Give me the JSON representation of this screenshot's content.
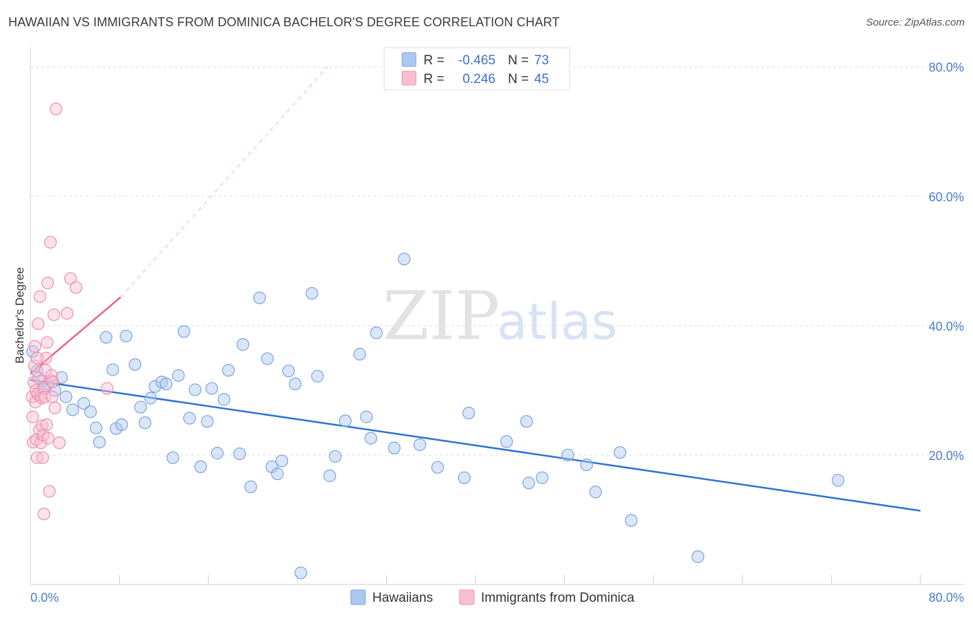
{
  "header": {
    "title": "HAWAIIAN VS IMMIGRANTS FROM DOMINICA BACHELOR'S DEGREE CORRELATION CHART",
    "source": "Source: ZipAtlas.com"
  },
  "watermark": {
    "zip": "ZIP",
    "atlas": "atlas"
  },
  "colors": {
    "blue_fill": "#aac8f0",
    "blue_stroke": "#7aa3dd",
    "blue_line": "#2f72d2",
    "pink_fill": "#f8bfd0",
    "pink_stroke": "#ec8fac",
    "pink_line": "#e8608a",
    "tick_text": "#4a7cc9",
    "grid": "#dddddd"
  },
  "legend": {
    "rows": [
      {
        "r_label": "R =",
        "r_value": "-0.465",
        "n_label": "N =",
        "n_value": "73",
        "color": "blue"
      },
      {
        "r_label": "R =",
        "r_value": "0.246",
        "n_label": "N =",
        "n_value": "45",
        "color": "pink"
      }
    ]
  },
  "bottom_legend": {
    "items": [
      {
        "label": "Hawaiians",
        "color": "blue"
      },
      {
        "label": "Immigrants from Dominica",
        "color": "pink"
      }
    ]
  },
  "chart_data": {
    "type": "scatter",
    "title": "HAWAIIAN VS IMMIGRANTS FROM DOMINICA BACHELOR'S DEGREE CORRELATION CHART",
    "xlabel": "",
    "ylabel": "Bachelor's Degree",
    "xlim": [
      0,
      80
    ],
    "ylim": [
      0,
      82
    ],
    "x_tick_labels": [
      {
        "value": 0,
        "label": "0.0%"
      },
      {
        "value": 80,
        "label": "80.0%"
      }
    ],
    "y_tick_labels": [
      {
        "value": 20,
        "label": "20.0%"
      },
      {
        "value": 40,
        "label": "40.0%"
      },
      {
        "value": 60,
        "label": "60.0%"
      },
      {
        "value": 80,
        "label": "80.0%"
      }
    ],
    "grid": true,
    "legend_position": "top-center",
    "series": [
      {
        "name": "Hawaiians",
        "color": "blue",
        "points": [
          [
            0.2,
            36.0
          ],
          [
            0.6,
            33.0
          ],
          [
            1.0,
            31.5
          ],
          [
            1.2,
            30.5
          ],
          [
            1.6,
            31.0
          ],
          [
            2.2,
            30.0
          ],
          [
            2.8,
            32.0
          ],
          [
            3.2,
            29.0
          ],
          [
            3.8,
            27.0
          ],
          [
            4.8,
            28.0
          ],
          [
            5.4,
            26.7
          ],
          [
            5.9,
            24.2
          ],
          [
            6.2,
            22.0
          ],
          [
            6.8,
            38.2
          ],
          [
            7.4,
            33.2
          ],
          [
            7.7,
            24.1
          ],
          [
            8.2,
            24.7
          ],
          [
            8.6,
            38.4
          ],
          [
            9.4,
            34.0
          ],
          [
            9.9,
            27.4
          ],
          [
            10.3,
            25.0
          ],
          [
            10.8,
            28.8
          ],
          [
            11.2,
            30.6
          ],
          [
            11.8,
            31.3
          ],
          [
            12.2,
            31.0
          ],
          [
            12.8,
            19.6
          ],
          [
            13.3,
            32.3
          ],
          [
            13.8,
            39.1
          ],
          [
            14.3,
            25.7
          ],
          [
            14.8,
            30.1
          ],
          [
            15.3,
            18.2
          ],
          [
            15.9,
            25.2
          ],
          [
            16.3,
            30.3
          ],
          [
            16.8,
            20.3
          ],
          [
            17.4,
            28.6
          ],
          [
            17.8,
            33.1
          ],
          [
            18.8,
            20.2
          ],
          [
            19.1,
            37.1
          ],
          [
            19.8,
            15.1
          ],
          [
            20.6,
            44.3
          ],
          [
            21.3,
            34.9
          ],
          [
            21.7,
            18.2
          ],
          [
            22.2,
            17.1
          ],
          [
            22.6,
            19.1
          ],
          [
            23.2,
            33.0
          ],
          [
            23.8,
            31.0
          ],
          [
            24.3,
            1.8
          ],
          [
            25.3,
            45.0
          ],
          [
            25.8,
            32.2
          ],
          [
            26.9,
            16.8
          ],
          [
            27.4,
            19.8
          ],
          [
            28.3,
            25.3
          ],
          [
            29.6,
            35.6
          ],
          [
            30.2,
            25.9
          ],
          [
            30.6,
            22.6
          ],
          [
            31.1,
            38.9
          ],
          [
            32.7,
            21.1
          ],
          [
            33.6,
            50.3
          ],
          [
            35.0,
            21.6
          ],
          [
            36.6,
            18.1
          ],
          [
            39.0,
            16.5
          ],
          [
            39.4,
            26.5
          ],
          [
            42.8,
            22.1
          ],
          [
            44.6,
            25.2
          ],
          [
            44.8,
            15.7
          ],
          [
            46.0,
            16.5
          ],
          [
            48.3,
            20.0
          ],
          [
            50.0,
            18.5
          ],
          [
            50.8,
            14.3
          ],
          [
            53.0,
            20.4
          ],
          [
            54.0,
            9.9
          ],
          [
            60.0,
            4.3
          ],
          [
            72.6,
            16.1
          ]
        ]
      },
      {
        "name": "Immigrants from Dominica",
        "color": "pink",
        "points": [
          [
            0.15,
            29.0
          ],
          [
            0.2,
            25.9
          ],
          [
            0.25,
            22.0
          ],
          [
            0.3,
            31.2
          ],
          [
            0.35,
            33.8
          ],
          [
            0.4,
            36.8
          ],
          [
            0.45,
            28.2
          ],
          [
            0.5,
            30.0
          ],
          [
            0.55,
            22.4
          ],
          [
            0.6,
            19.6
          ],
          [
            0.65,
            29.4
          ],
          [
            0.7,
            40.3
          ],
          [
            0.75,
            31.9
          ],
          [
            0.8,
            23.9
          ],
          [
            0.85,
            44.5
          ],
          [
            0.9,
            29.2
          ],
          [
            0.95,
            21.9
          ],
          [
            1.0,
            28.8
          ],
          [
            1.05,
            24.5
          ],
          [
            1.1,
            19.6
          ],
          [
            1.15,
            23.1
          ],
          [
            1.2,
            10.9
          ],
          [
            1.25,
            30.3
          ],
          [
            1.3,
            29.0
          ],
          [
            1.35,
            33.1
          ],
          [
            1.4,
            35.0
          ],
          [
            1.45,
            24.7
          ],
          [
            1.5,
            37.4
          ],
          [
            1.55,
            46.6
          ],
          [
            1.6,
            22.6
          ],
          [
            1.7,
            14.4
          ],
          [
            1.8,
            52.9
          ],
          [
            1.85,
            31.5
          ],
          [
            1.9,
            32.3
          ],
          [
            1.95,
            29.0
          ],
          [
            2.0,
            31.3
          ],
          [
            2.1,
            41.7
          ],
          [
            2.2,
            27.3
          ],
          [
            2.3,
            73.5
          ],
          [
            2.6,
            21.9
          ],
          [
            3.3,
            41.9
          ],
          [
            3.6,
            47.3
          ],
          [
            4.1,
            45.9
          ],
          [
            6.9,
            30.3
          ],
          [
            0.6,
            35.0
          ]
        ]
      }
    ],
    "trend_lines": [
      {
        "series": "Hawaiians",
        "x": [
          0,
          80
        ],
        "y": [
          31.6,
          11.4
        ],
        "style": "solid"
      },
      {
        "series": "Immigrants from Dominica",
        "x": [
          0,
          8.1
        ],
        "y": [
          32.6,
          44.4
        ],
        "style": "solid"
      },
      {
        "series": "Immigrants from Dominica",
        "x": [
          8.1,
          26.7
        ],
        "y": [
          44.4,
          80.0
        ],
        "style": "dashed"
      }
    ]
  }
}
